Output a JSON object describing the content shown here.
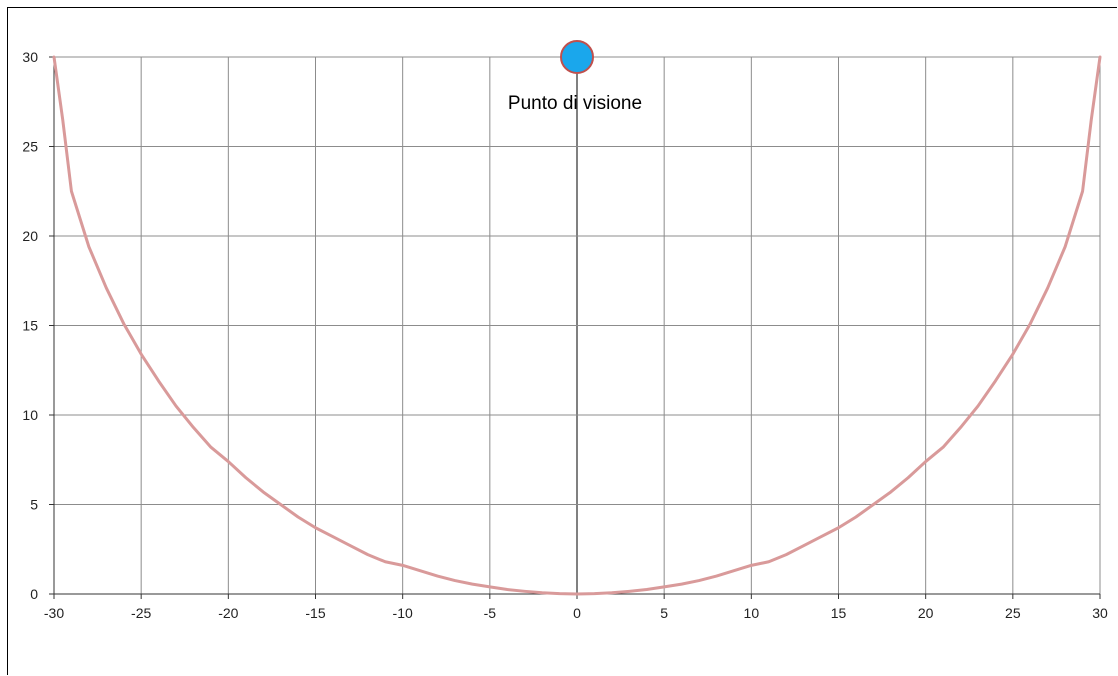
{
  "chart_data": {
    "type": "scatter",
    "title": "",
    "xlabel": "",
    "ylabel": "",
    "xlim": [
      -30,
      30
    ],
    "ylim": [
      0,
      30
    ],
    "xticks": [
      -30,
      -25,
      -20,
      -15,
      -10,
      -5,
      0,
      5,
      10,
      15,
      20,
      25,
      30
    ],
    "yticks": [
      0,
      5,
      10,
      15,
      20,
      25,
      30
    ],
    "grid": true,
    "legend": "none",
    "series": [
      {
        "kind": "line",
        "color": "#d99a9a",
        "points": [
          [
            -30,
            30
          ],
          [
            -29.5,
            26.5
          ],
          [
            -29,
            22.5
          ],
          [
            -28,
            19.4
          ],
          [
            -27,
            17.1
          ],
          [
            -26,
            15.1
          ],
          [
            -25,
            13.4
          ],
          [
            -24,
            11.9
          ],
          [
            -23,
            10.5
          ],
          [
            -22,
            9.3
          ],
          [
            -21,
            8.2
          ],
          [
            -20,
            7.4
          ],
          [
            -19,
            6.5
          ],
          [
            -18,
            5.7
          ],
          [
            -17,
            5.0
          ],
          [
            -16,
            4.3
          ],
          [
            -15,
            3.7
          ],
          [
            -14,
            3.2
          ],
          [
            -13,
            2.7
          ],
          [
            -12,
            2.2
          ],
          [
            -11,
            1.8
          ],
          [
            -10,
            1.6
          ],
          [
            -9,
            1.3
          ],
          [
            -8,
            1.0
          ],
          [
            -7,
            0.75
          ],
          [
            -6,
            0.55
          ],
          [
            -5,
            0.4
          ],
          [
            -4,
            0.25
          ],
          [
            -3,
            0.15
          ],
          [
            -2,
            0.07
          ],
          [
            -1,
            0.02
          ],
          [
            0,
            0
          ],
          [
            1,
            0.02
          ],
          [
            2,
            0.07
          ],
          [
            3,
            0.15
          ],
          [
            4,
            0.25
          ],
          [
            5,
            0.4
          ],
          [
            6,
            0.55
          ],
          [
            7,
            0.75
          ],
          [
            8,
            1.0
          ],
          [
            9,
            1.3
          ],
          [
            10,
            1.6
          ],
          [
            11,
            1.8
          ],
          [
            12,
            2.2
          ],
          [
            13,
            2.7
          ],
          [
            14,
            3.2
          ],
          [
            15,
            3.7
          ],
          [
            16,
            4.3
          ],
          [
            17,
            5.0
          ],
          [
            18,
            5.7
          ],
          [
            19,
            6.5
          ],
          [
            20,
            7.4
          ],
          [
            21,
            8.2
          ],
          [
            22,
            9.3
          ],
          [
            23,
            10.5
          ],
          [
            24,
            11.9
          ],
          [
            25,
            13.4
          ],
          [
            26,
            15.1
          ],
          [
            27,
            17.1
          ],
          [
            28,
            19.4
          ],
          [
            29,
            22.5
          ],
          [
            29.5,
            26.5
          ],
          [
            30,
            30
          ]
        ]
      },
      {
        "kind": "point",
        "color": "#1aa7ec",
        "stroke": "#c0504d",
        "points": [
          [
            0,
            30
          ]
        ],
        "label": "Punto di visione"
      }
    ]
  },
  "colors": {
    "grid": "#8c8c8c",
    "zero_line": "#000000",
    "curve": "#d99a9a",
    "point_fill": "#1aa7ec",
    "point_stroke": "#c0504d"
  }
}
